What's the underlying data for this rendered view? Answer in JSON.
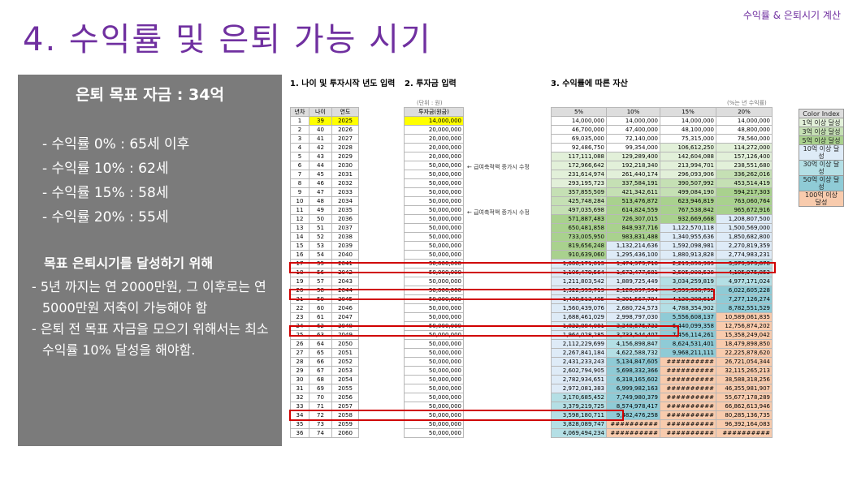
{
  "header": {
    "corner": "수익률 & 은퇴시기 계산",
    "title": "4. 수익률 및 은퇴 가능 시기"
  },
  "summary": {
    "heading": "은퇴 목표 자금 : 34억",
    "rates": [
      "- 수익률    0% : 65세 이후",
      "- 수익률 10% : 62세",
      "- 수익률 15% : 58세",
      "- 수익률 20% : 55세"
    ],
    "goal_heading": "목표 은퇴시기를 달성하기 위해",
    "bullets": [
      "- 5년 까지는 연 2000만원, 그 이후로는 연 5000만원 저축이 가능해야 함",
      "- 은퇴 전 목표 자금을 모으기 위해서는 최소 수익률 10% 달성을 해야함."
    ]
  },
  "sections": {
    "s1": "1. 나이 및 투자시작 년도 입력",
    "s2": "2. 투자금 입력",
    "s3": "3. 수익률에 따른 자산",
    "unit": "(단위 : 원)",
    "pct_note": "(%는 년 수익률)"
  },
  "notes": [
    "← 급여축적액 증가시 수정",
    "← 급여축적액 증가시 수정"
  ],
  "left_table": {
    "headers": [
      "년차",
      "나이",
      "연도"
    ],
    "rows": [
      [
        "1",
        "39",
        "2025"
      ],
      [
        "2",
        "40",
        "2026"
      ],
      [
        "3",
        "41",
        "2027"
      ],
      [
        "4",
        "42",
        "2028"
      ],
      [
        "5",
        "43",
        "2029"
      ],
      [
        "6",
        "44",
        "2030"
      ],
      [
        "7",
        "45",
        "2031"
      ],
      [
        "8",
        "46",
        "2032"
      ],
      [
        "9",
        "47",
        "2033"
      ],
      [
        "10",
        "48",
        "2034"
      ],
      [
        "11",
        "49",
        "2035"
      ],
      [
        "12",
        "50",
        "2036"
      ],
      [
        "13",
        "51",
        "2037"
      ],
      [
        "14",
        "52",
        "2038"
      ],
      [
        "15",
        "53",
        "2039"
      ],
      [
        "16",
        "54",
        "2040"
      ],
      [
        "17",
        "55",
        "2041"
      ],
      [
        "18",
        "56",
        "2042"
      ],
      [
        "19",
        "57",
        "2043"
      ],
      [
        "20",
        "58",
        "2044"
      ],
      [
        "21",
        "59",
        "2045"
      ],
      [
        "22",
        "60",
        "2046"
      ],
      [
        "23",
        "61",
        "2047"
      ],
      [
        "24",
        "62",
        "2048"
      ],
      [
        "25",
        "63",
        "2049"
      ],
      [
        "26",
        "64",
        "2050"
      ],
      [
        "27",
        "65",
        "2051"
      ],
      [
        "28",
        "66",
        "2052"
      ],
      [
        "29",
        "67",
        "2053"
      ],
      [
        "30",
        "68",
        "2054"
      ],
      [
        "31",
        "69",
        "2055"
      ],
      [
        "32",
        "70",
        "2056"
      ],
      [
        "33",
        "71",
        "2057"
      ],
      [
        "34",
        "72",
        "2058"
      ],
      [
        "35",
        "73",
        "2059"
      ],
      [
        "36",
        "74",
        "2060"
      ]
    ]
  },
  "invest_table": {
    "header": "투자금(원금)",
    "values": [
      "14,000,000",
      "20,000,000",
      "20,000,000",
      "20,000,000",
      "20,000,000",
      "50,000,000",
      "50,000,000",
      "50,000,000",
      "50,000,000",
      "50,000,000",
      "50,000,000",
      "50,000,000",
      "50,000,000",
      "50,000,000",
      "50,000,000",
      "50,000,000",
      "50,000,000",
      "50,000,000",
      "50,000,000",
      "50,000,000",
      "50,000,000",
      "50,000,000",
      "50,000,000",
      "50,000,000",
      "50,000,000",
      "50,000,000",
      "50,000,000",
      "50,000,000",
      "50,000,000",
      "50,000,000",
      "50,000,000",
      "50,000,000",
      "50,000,000",
      "50,000,000",
      "50,000,000",
      "50,000,000"
    ]
  },
  "asset_table": {
    "headers": [
      "5%",
      "10%",
      "15%",
      "20%"
    ],
    "rows": [
      [
        "14,000,000",
        "14,000,000",
        "14,000,000",
        "14,000,000"
      ],
      [
        "46,700,000",
        "47,400,000",
        "48,100,000",
        "48,800,000"
      ],
      [
        "69,035,000",
        "72,140,000",
        "75,315,000",
        "78,560,000"
      ],
      [
        "92,486,750",
        "99,354,000",
        "106,612,250",
        "114,272,000"
      ],
      [
        "117,111,088",
        "129,289,400",
        "142,604,088",
        "157,126,400"
      ],
      [
        "172,966,642",
        "192,218,340",
        "213,994,701",
        "238,551,680"
      ],
      [
        "231,614,974",
        "261,440,174",
        "296,093,906",
        "336,262,016"
      ],
      [
        "293,195,723",
        "337,584,191",
        "390,507,992",
        "453,514,419"
      ],
      [
        "357,855,509",
        "421,342,611",
        "499,084,190",
        "594,217,303"
      ],
      [
        "425,748,284",
        "513,476,872",
        "623,946,819",
        "763,060,764"
      ],
      [
        "497,035,698",
        "614,824,559",
        "767,538,842",
        "965,672,916"
      ],
      [
        "571,887,483",
        "726,307,015",
        "932,669,668",
        "1,208,807,500"
      ],
      [
        "650,481,858",
        "848,937,716",
        "1,122,570,118",
        "1,500,569,000"
      ],
      [
        "733,005,950",
        "983,831,488",
        "1,340,955,636",
        "1,850,682,800"
      ],
      [
        "819,656,248",
        "1,132,214,636",
        "1,592,098,981",
        "2,270,819,359"
      ],
      [
        "910,639,060",
        "1,295,436,100",
        "1,880,913,828",
        "2,774,983,231"
      ],
      [
        "1,006,171,013",
        "1,474,979,710",
        "2,213,050,903",
        "3,379,979,878"
      ],
      [
        "1,106,479,564",
        "1,672,477,681",
        "2,595,008,538",
        "4,105,975,853"
      ],
      [
        "1,211,803,542",
        "1,889,725,449",
        "3,034,259,819",
        "4,977,171,024"
      ],
      [
        "1,322,393,719",
        "2,128,697,994",
        "3,539,398,792",
        "6,022,605,228"
      ],
      [
        "1,438,513,405",
        "2,391,567,794",
        "4,120,308,610",
        "7,277,126,274"
      ],
      [
        "1,560,439,076",
        "2,680,724,573",
        "4,788,354,902",
        "8,782,551,529"
      ],
      [
        "1,688,461,029",
        "2,998,797,030",
        "5,556,608,137",
        "10,589,061,835"
      ],
      [
        "1,822,884,081",
        "3,348,676,733",
        "6,440,099,358",
        "12,756,874,202"
      ],
      [
        "1,964,028,285",
        "3,733,544,407",
        "7,456,114,261",
        "15,358,249,042"
      ],
      [
        "2,112,229,699",
        "4,156,898,847",
        "8,624,531,401",
        "18,479,898,850"
      ],
      [
        "2,267,841,184",
        "4,622,588,732",
        "9,968,211,111",
        "22,225,878,620"
      ],
      [
        "2,431,233,243",
        "5,134,847,605",
        "##########",
        "26,721,054,344"
      ],
      [
        "2,602,794,905",
        "5,698,332,366",
        "##########",
        "32,115,265,213"
      ],
      [
        "2,782,934,651",
        "6,318,165,602",
        "##########",
        "38,588,318,256"
      ],
      [
        "2,972,081,383",
        "6,999,982,163",
        "##########",
        "46,355,981,907"
      ],
      [
        "3,170,685,452",
        "7,749,980,379",
        "##########",
        "55,677,178,289"
      ],
      [
        "3,379,219,725",
        "8,574,978,417",
        "##########",
        "66,862,613,946"
      ],
      [
        "3,598,180,711",
        "9,482,476,258",
        "##########",
        "80,285,136,735"
      ],
      [
        "3,828,089,747",
        "##########",
        "##########",
        "96,392,164,083"
      ],
      [
        "4,069,494,234",
        "##########",
        "##########",
        "##########"
      ]
    ]
  },
  "legend": {
    "header": "Color Index",
    "items": [
      {
        "label": "1억 이상 달성",
        "color": "#e2f0d9"
      },
      {
        "label": "3억 이상 달성",
        "color": "#c5e0b4"
      },
      {
        "label": "5억 이상 달성",
        "color": "#a9d18e"
      },
      {
        "label": "10억 이상 달성",
        "color": "#deebf7"
      },
      {
        "label": "30억 이상 달성",
        "color": "#b4dfe5"
      },
      {
        "label": "50억 이상 달성",
        "color": "#8fcbd6"
      },
      {
        "label": "100억 이상 달성",
        "color": "#f8cbad"
      }
    ]
  },
  "colors": {
    "accent": "#7030a0",
    "highlight_start": "#ffff00",
    "highlight_border": "#d00000",
    "panel": "#7b7b7b"
  }
}
